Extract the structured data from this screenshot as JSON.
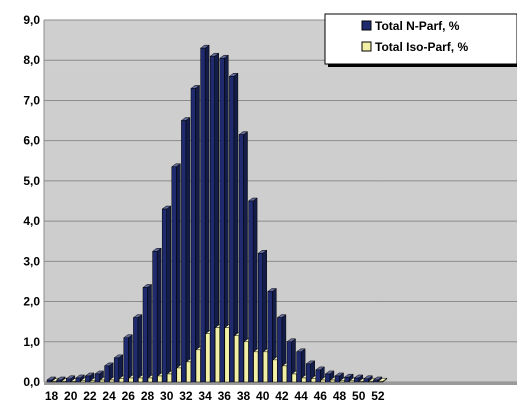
{
  "chart_data": {
    "type": "bar",
    "categories": [
      "18",
      "19",
      "20",
      "21",
      "22",
      "23",
      "24",
      "25",
      "26",
      "27",
      "28",
      "29",
      "30",
      "31",
      "32",
      "33",
      "34",
      "35",
      "36",
      "37",
      "38",
      "39",
      "40",
      "41",
      "42",
      "43",
      "44",
      "45",
      "46",
      "47",
      "48",
      "49",
      "50",
      "51",
      "52"
    ],
    "x_tick_labels": [
      "18",
      "20",
      "22",
      "24",
      "26",
      "28",
      "30",
      "32",
      "34",
      "36",
      "38",
      "40",
      "42",
      "44",
      "46",
      "48",
      "50",
      "52"
    ],
    "y_tick_labels": [
      "0,0",
      "1,0",
      "2,0",
      "3,0",
      "4,0",
      "5,0",
      "6,0",
      "7,0",
      "8,0",
      "9,0"
    ],
    "ylim": [
      0,
      9
    ],
    "grid": true,
    "legend_position": "top-right",
    "series": [
      {
        "name": "Total N-Parf, %",
        "color": "#1f2b6e",
        "values": [
          0.05,
          0.05,
          0.08,
          0.1,
          0.15,
          0.2,
          0.4,
          0.6,
          1.1,
          1.6,
          2.35,
          3.25,
          4.3,
          5.35,
          6.5,
          7.3,
          8.3,
          8.1,
          8.05,
          7.6,
          6.15,
          4.5,
          3.2,
          2.25,
          1.6,
          1.0,
          0.75,
          0.45,
          0.3,
          0.2,
          0.15,
          0.12,
          0.1,
          0.08,
          0.05
        ]
      },
      {
        "name": "Total Iso-Parf, %",
        "color": "#f1f0a6",
        "values": [
          0.02,
          0.02,
          0.02,
          0.03,
          0.03,
          0.05,
          0.05,
          0.08,
          0.1,
          0.1,
          0.1,
          0.15,
          0.2,
          0.35,
          0.5,
          0.8,
          1.2,
          1.35,
          1.35,
          1.15,
          1.0,
          0.75,
          0.75,
          0.55,
          0.4,
          0.2,
          0.1,
          0.08,
          0.05,
          0.05,
          0.03,
          0.03,
          0.02,
          0.02,
          0.02
        ]
      }
    ]
  }
}
